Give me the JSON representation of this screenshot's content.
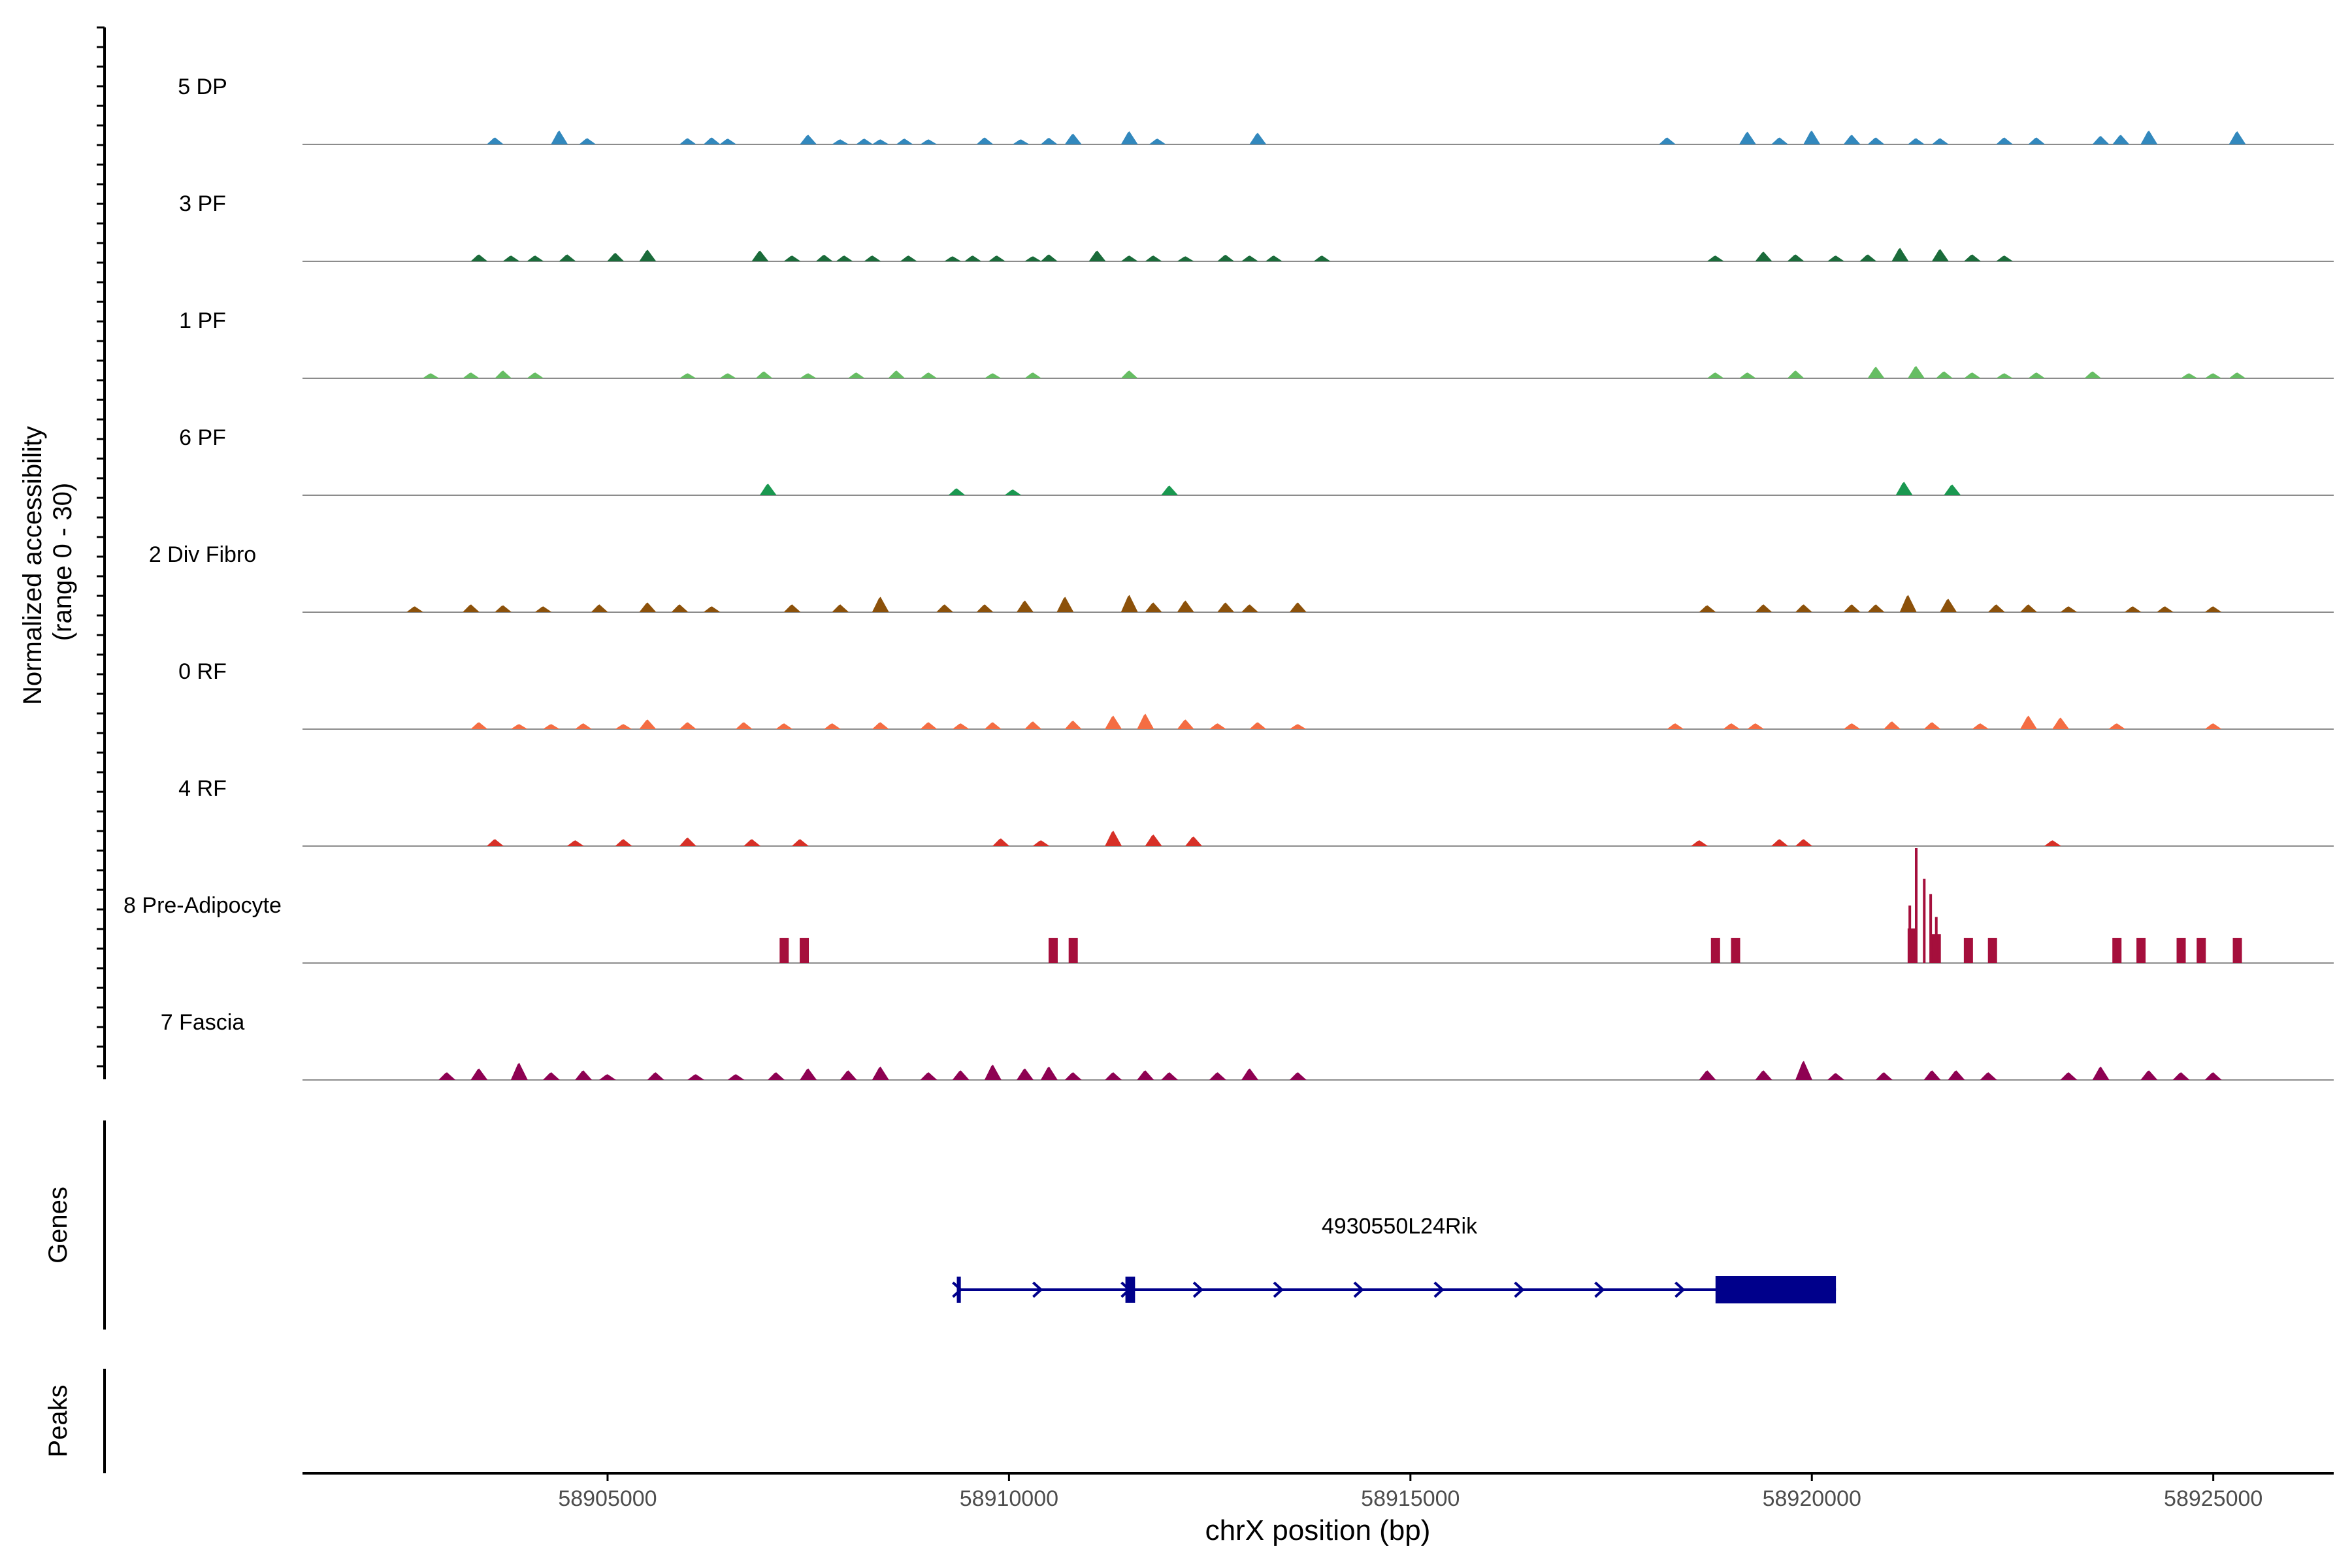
{
  "chart_data": {
    "type": "area",
    "title": "",
    "xlabel": "chrX position (bp)",
    "ylabel": "Normalized accessibility\n(range 0 - 30)",
    "xlim": [
      58901200,
      58926500
    ],
    "ylim": [
      0,
      30
    ],
    "x_ticks": [
      58905000,
      58910000,
      58915000,
      58920000,
      58925000
    ],
    "x_tick_labels": [
      "58905000",
      "58910000",
      "58915000",
      "58920000",
      "58925000"
    ],
    "series": [
      {
        "name": "5 DP",
        "color": "#3288BD",
        "peaks": [
          [
            58903600,
            1.8
          ],
          [
            58904400,
            3.6
          ],
          [
            58904750,
            1.6
          ],
          [
            58906000,
            1.6
          ],
          [
            58906300,
            1.8
          ],
          [
            58906500,
            1.5
          ],
          [
            58907500,
            2.5
          ],
          [
            58907900,
            1.3
          ],
          [
            58908200,
            1.5
          ],
          [
            58908400,
            1.3
          ],
          [
            58908700,
            1.5
          ],
          [
            58909000,
            1.3
          ],
          [
            58909700,
            1.8
          ],
          [
            58910150,
            1.3
          ],
          [
            58910500,
            1.7
          ],
          [
            58910800,
            2.8
          ],
          [
            58911500,
            3.4
          ],
          [
            58911850,
            1.5
          ],
          [
            58913100,
            3.0
          ],
          [
            58918200,
            1.8
          ],
          [
            58919200,
            3.3
          ],
          [
            58919600,
            1.8
          ],
          [
            58920000,
            3.6
          ],
          [
            58920500,
            2.5
          ],
          [
            58920800,
            1.8
          ],
          [
            58921300,
            1.6
          ],
          [
            58921600,
            1.6
          ],
          [
            58922400,
            1.8
          ],
          [
            58922800,
            1.8
          ],
          [
            58923600,
            2.2
          ],
          [
            58923850,
            2.5
          ],
          [
            58924200,
            3.6
          ],
          [
            58925300,
            3.4
          ]
        ]
      },
      {
        "name": "3 PF",
        "color": "#1A6B3A",
        "peaks": [
          [
            58903400,
            1.8
          ],
          [
            58903800,
            1.5
          ],
          [
            58904100,
            1.5
          ],
          [
            58904500,
            1.8
          ],
          [
            58905100,
            2.2
          ],
          [
            58905500,
            3.0
          ],
          [
            58906900,
            2.8
          ],
          [
            58907300,
            1.5
          ],
          [
            58907700,
            1.7
          ],
          [
            58907950,
            1.5
          ],
          [
            58908300,
            1.5
          ],
          [
            58908750,
            1.5
          ],
          [
            58909300,
            1.3
          ],
          [
            58909550,
            1.5
          ],
          [
            58909850,
            1.5
          ],
          [
            58910300,
            1.3
          ],
          [
            58910500,
            1.8
          ],
          [
            58911100,
            2.8
          ],
          [
            58911500,
            1.5
          ],
          [
            58911800,
            1.5
          ],
          [
            58912200,
            1.3
          ],
          [
            58912700,
            1.7
          ],
          [
            58913000,
            1.5
          ],
          [
            58913300,
            1.5
          ],
          [
            58913900,
            1.5
          ],
          [
            58918800,
            1.5
          ],
          [
            58919400,
            2.5
          ],
          [
            58919800,
            1.8
          ],
          [
            58920300,
            1.5
          ],
          [
            58920700,
            1.8
          ],
          [
            58921100,
            3.5
          ],
          [
            58921600,
            3.2
          ],
          [
            58922000,
            1.8
          ],
          [
            58922400,
            1.5
          ]
        ]
      },
      {
        "name": "1 PF",
        "color": "#66BD63",
        "peaks": [
          [
            58902800,
            1.3
          ],
          [
            58903300,
            1.5
          ],
          [
            58903700,
            2.0
          ],
          [
            58904100,
            1.5
          ],
          [
            58906000,
            1.3
          ],
          [
            58906500,
            1.3
          ],
          [
            58906950,
            1.8
          ],
          [
            58907500,
            1.3
          ],
          [
            58908100,
            1.5
          ],
          [
            58908600,
            2.0
          ],
          [
            58909000,
            1.5
          ],
          [
            58909800,
            1.3
          ],
          [
            58910300,
            1.5
          ],
          [
            58911500,
            2.0
          ],
          [
            58918800,
            1.5
          ],
          [
            58919200,
            1.5
          ],
          [
            58919800,
            2.0
          ],
          [
            58920800,
            3.0
          ],
          [
            58921300,
            3.2
          ],
          [
            58921650,
            1.8
          ],
          [
            58922000,
            1.5
          ],
          [
            58922400,
            1.3
          ],
          [
            58922800,
            1.5
          ],
          [
            58923500,
            1.8
          ],
          [
            58924700,
            1.3
          ],
          [
            58925000,
            1.3
          ],
          [
            58925300,
            1.5
          ]
        ]
      },
      {
        "name": "6 PF",
        "color": "#1A9850",
        "peaks": [
          [
            58907000,
            3.0
          ],
          [
            58909350,
            1.8
          ],
          [
            58910050,
            1.5
          ],
          [
            58912000,
            2.5
          ],
          [
            58921150,
            3.5
          ],
          [
            58921750,
            2.8
          ]
        ]
      },
      {
        "name": "2 Div Fibro",
        "color": "#8C510A",
        "peaks": [
          [
            58902600,
            1.5
          ],
          [
            58903300,
            2.0
          ],
          [
            58903700,
            1.8
          ],
          [
            58904200,
            1.5
          ],
          [
            58904900,
            2.0
          ],
          [
            58905500,
            2.5
          ],
          [
            58905900,
            2.0
          ],
          [
            58906300,
            1.5
          ],
          [
            58907300,
            2.0
          ],
          [
            58907900,
            2.0
          ],
          [
            58908400,
            4.0
          ],
          [
            58909200,
            2.0
          ],
          [
            58909700,
            2.0
          ],
          [
            58910200,
            3.0
          ],
          [
            58910700,
            4.0
          ],
          [
            58911500,
            4.5
          ],
          [
            58911800,
            2.5
          ],
          [
            58912200,
            3.0
          ],
          [
            58912700,
            2.5
          ],
          [
            58913000,
            2.0
          ],
          [
            58913600,
            2.5
          ],
          [
            58918700,
            1.8
          ],
          [
            58919400,
            2.0
          ],
          [
            58919900,
            2.0
          ],
          [
            58920500,
            2.0
          ],
          [
            58920800,
            2.0
          ],
          [
            58921200,
            4.5
          ],
          [
            58921700,
            3.5
          ],
          [
            58922300,
            2.0
          ],
          [
            58922700,
            2.0
          ],
          [
            58923200,
            1.5
          ],
          [
            58924000,
            1.5
          ],
          [
            58924400,
            1.5
          ],
          [
            58925000,
            1.5
          ]
        ]
      },
      {
        "name": "0 RF",
        "color": "#F46D43",
        "peaks": [
          [
            58903400,
            1.8
          ],
          [
            58903900,
            1.3
          ],
          [
            58904300,
            1.3
          ],
          [
            58904700,
            1.5
          ],
          [
            58905200,
            1.3
          ],
          [
            58905500,
            2.5
          ],
          [
            58906000,
            1.8
          ],
          [
            58906700,
            1.8
          ],
          [
            58907200,
            1.5
          ],
          [
            58907800,
            1.5
          ],
          [
            58908400,
            1.8
          ],
          [
            58909000,
            1.8
          ],
          [
            58909400,
            1.5
          ],
          [
            58909800,
            1.8
          ],
          [
            58910300,
            2.0
          ],
          [
            58910800,
            2.2
          ],
          [
            58911300,
            3.5
          ],
          [
            58911700,
            4.0
          ],
          [
            58912200,
            2.5
          ],
          [
            58912600,
            1.5
          ],
          [
            58913100,
            1.8
          ],
          [
            58913600,
            1.3
          ],
          [
            58918300,
            1.5
          ],
          [
            58919000,
            1.5
          ],
          [
            58919300,
            1.5
          ],
          [
            58920500,
            1.5
          ],
          [
            58921000,
            2.0
          ],
          [
            58921500,
            1.8
          ],
          [
            58922100,
            1.5
          ],
          [
            58922700,
            3.5
          ],
          [
            58923100,
            3.0
          ],
          [
            58923800,
            1.5
          ],
          [
            58925000,
            1.5
          ]
        ]
      },
      {
        "name": "4 RF",
        "color": "#D73027",
        "peaks": [
          [
            58903600,
            1.8
          ],
          [
            58904600,
            1.5
          ],
          [
            58905200,
            1.8
          ],
          [
            58906000,
            2.2
          ],
          [
            58906800,
            1.8
          ],
          [
            58907400,
            1.8
          ],
          [
            58909900,
            2.0
          ],
          [
            58910400,
            1.5
          ],
          [
            58911300,
            4.0
          ],
          [
            58911800,
            3.0
          ],
          [
            58912300,
            2.5
          ],
          [
            58918600,
            1.5
          ],
          [
            58919600,
            1.8
          ],
          [
            58919900,
            1.8
          ],
          [
            58923000,
            1.5
          ]
        ]
      },
      {
        "name": "8 Pre-Adipocyte",
        "color": "#A50F3C",
        "bars": [
          [
            58907200,
            6.5
          ],
          [
            58907450,
            6.5
          ],
          [
            58910550,
            6.5
          ],
          [
            58910800,
            6.5
          ],
          [
            58918800,
            6.5
          ],
          [
            58919050,
            6.5
          ],
          [
            58921250,
            9.0
          ],
          [
            58921550,
            7.5
          ],
          [
            58921950,
            6.5
          ],
          [
            58922250,
            6.5
          ],
          [
            58923800,
            6.5
          ],
          [
            58924100,
            6.5
          ],
          [
            58924600,
            6.5
          ],
          [
            58924850,
            6.5
          ],
          [
            58925300,
            6.5
          ]
        ],
        "spikes": [
          [
            58921300,
            30
          ],
          [
            58921400,
            22
          ],
          [
            58921220,
            15
          ],
          [
            58921480,
            18
          ],
          [
            58921550,
            12
          ]
        ]
      },
      {
        "name": "7 Fascia",
        "color": "#8E0152",
        "peaks": [
          [
            58903000,
            2.0
          ],
          [
            58903400,
            3.0
          ],
          [
            58903900,
            4.5
          ],
          [
            58904300,
            2.0
          ],
          [
            58904700,
            2.5
          ],
          [
            58905000,
            1.5
          ],
          [
            58905600,
            2.0
          ],
          [
            58906100,
            1.5
          ],
          [
            58906600,
            1.5
          ],
          [
            58907100,
            2.0
          ],
          [
            58907500,
            3.0
          ],
          [
            58908000,
            2.5
          ],
          [
            58908400,
            3.5
          ],
          [
            58909000,
            2.0
          ],
          [
            58909400,
            2.5
          ],
          [
            58909800,
            4.0
          ],
          [
            58910200,
            3.0
          ],
          [
            58910500,
            3.5
          ],
          [
            58910800,
            2.0
          ],
          [
            58911300,
            2.0
          ],
          [
            58911700,
            2.5
          ],
          [
            58912000,
            2.0
          ],
          [
            58912600,
            2.0
          ],
          [
            58913000,
            3.0
          ],
          [
            58913600,
            2.0
          ],
          [
            58918700,
            2.5
          ],
          [
            58919400,
            2.5
          ],
          [
            58919900,
            5.0
          ],
          [
            58920300,
            1.8
          ],
          [
            58920900,
            2.0
          ],
          [
            58921500,
            2.5
          ],
          [
            58921800,
            2.5
          ],
          [
            58922200,
            2.0
          ],
          [
            58923200,
            2.0
          ],
          [
            58923600,
            3.5
          ],
          [
            58924200,
            2.5
          ],
          [
            58924600,
            2.0
          ],
          [
            58925000,
            2.0
          ]
        ]
      }
    ],
    "gene": {
      "label": "4930550L24Rik",
      "start": 58909350,
      "end": 58920300,
      "strand": "+",
      "exons": [
        [
          58909350,
          58909400
        ],
        [
          58911450,
          58911570
        ],
        [
          58918800,
          58920300
        ]
      ],
      "arrows": [
        58909350,
        58910350,
        58911450,
        58912350,
        58913350,
        58914350,
        58915350,
        58916350,
        58917350,
        58918350
      ],
      "color": "#00008B"
    },
    "track_labels": {
      "genes": "Genes",
      "peaks": "Peaks"
    }
  }
}
